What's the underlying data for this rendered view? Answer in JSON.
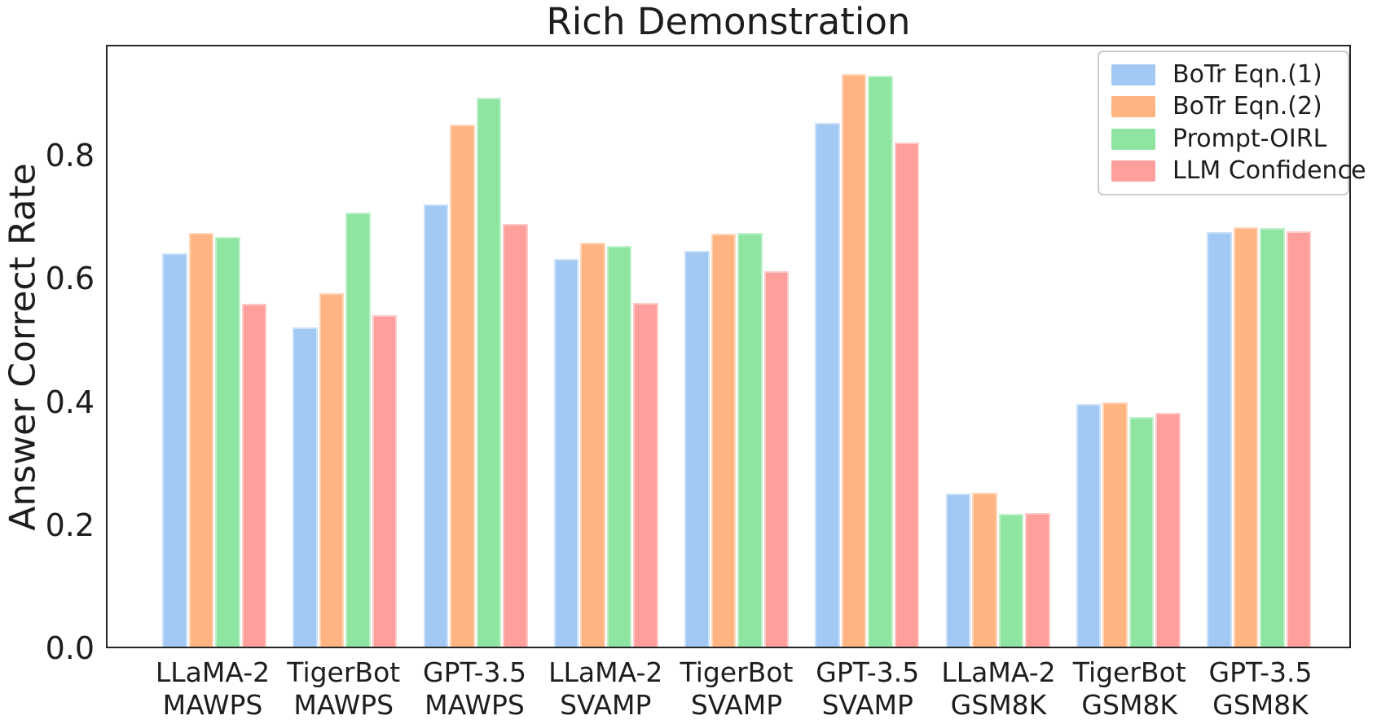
{
  "chart_data": {
    "type": "bar",
    "title": "Rich Demonstration",
    "xlabel": "",
    "ylabel": "Answer Correct Rate",
    "ylim": [
      0,
      0.98
    ],
    "yticks": [
      0.0,
      0.2,
      0.4,
      0.6,
      0.8
    ],
    "grid": false,
    "legend_position": "upper right",
    "categories": [
      {
        "model": "LLaMA-2",
        "dataset": "MAWPS"
      },
      {
        "model": "TigerBot",
        "dataset": "MAWPS"
      },
      {
        "model": "GPT-3.5",
        "dataset": "MAWPS"
      },
      {
        "model": "LLaMA-2",
        "dataset": "SVAMP"
      },
      {
        "model": "TigerBot",
        "dataset": "SVAMP"
      },
      {
        "model": "GPT-3.5",
        "dataset": "SVAMP"
      },
      {
        "model": "LLaMA-2",
        "dataset": "GSM8K"
      },
      {
        "model": "TigerBot",
        "dataset": "GSM8K"
      },
      {
        "model": "GPT-3.5",
        "dataset": "GSM8K"
      }
    ],
    "series": [
      {
        "name": "BoTr Eqn.(1)",
        "color": "#a1c9f4",
        "values": [
          0.64,
          0.519,
          0.72,
          0.63,
          0.643,
          0.852,
          0.248,
          0.394,
          0.674
        ]
      },
      {
        "name": "BoTr Eqn.(2)",
        "color": "#ffb482",
        "values": [
          0.673,
          0.574,
          0.85,
          0.657,
          0.672,
          0.932,
          0.249,
          0.396,
          0.682
        ]
      },
      {
        "name": "Prompt-OIRL",
        "color": "#8de5a1",
        "values": [
          0.666,
          0.706,
          0.893,
          0.651,
          0.673,
          0.93,
          0.214,
          0.372,
          0.681
        ]
      },
      {
        "name": "LLM Confidence",
        "color": "#ff9f9b",
        "values": [
          0.557,
          0.539,
          0.688,
          0.559,
          0.61,
          0.821,
          0.216,
          0.379,
          0.675
        ]
      }
    ]
  }
}
